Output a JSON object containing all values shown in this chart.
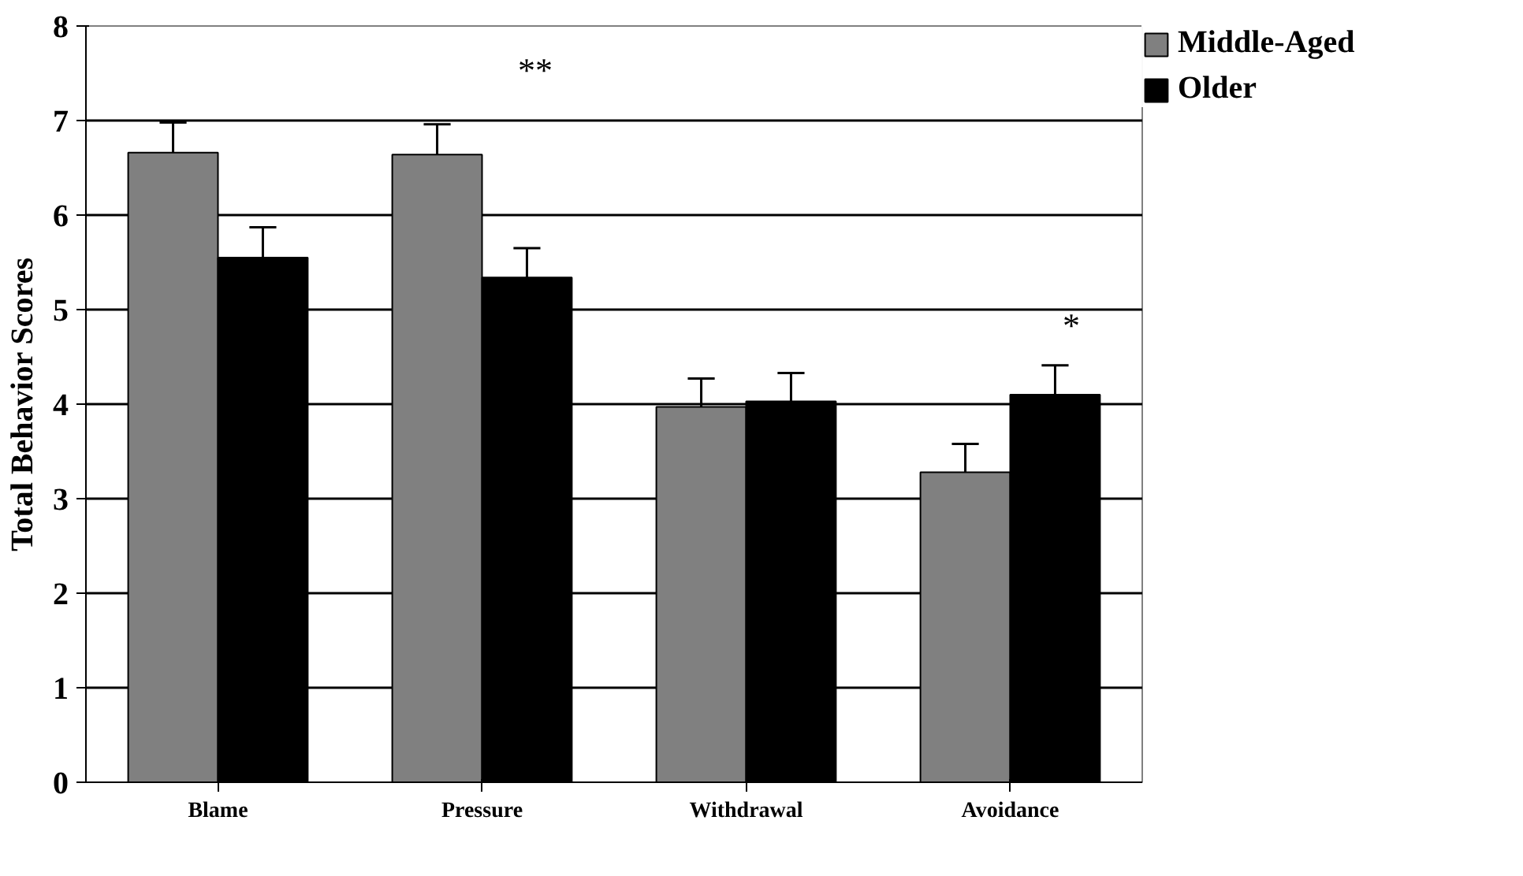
{
  "chart_data": {
    "type": "bar",
    "ylabel": "Total Behavior Scores",
    "categories": [
      "Blame",
      "Pressure",
      "Withdrawal",
      "Avoidance"
    ],
    "series": [
      {
        "name": "Middle-Aged",
        "color": "#808080",
        "values": [
          6.66,
          6.64,
          3.97,
          3.28
        ],
        "errors": [
          [
            6.66,
            6.98
          ],
          [
            6.64,
            6.96
          ],
          [
            3.97,
            4.27
          ],
          [
            3.28,
            3.58
          ]
        ]
      },
      {
        "name": "Older",
        "color": "#000000",
        "values": [
          5.55,
          5.34,
          4.03,
          4.1
        ],
        "errors": [
          [
            5.55,
            5.87
          ],
          [
            5.34,
            5.65
          ],
          [
            4.03,
            4.33
          ],
          [
            4.1,
            4.41
          ]
        ]
      }
    ],
    "ylim": [
      0,
      8
    ],
    "yticks": [
      0,
      1,
      2,
      3,
      4,
      5,
      6,
      7,
      8
    ],
    "grid": "y",
    "legend": "right",
    "annotations": [
      "**",
      "*"
    ]
  }
}
